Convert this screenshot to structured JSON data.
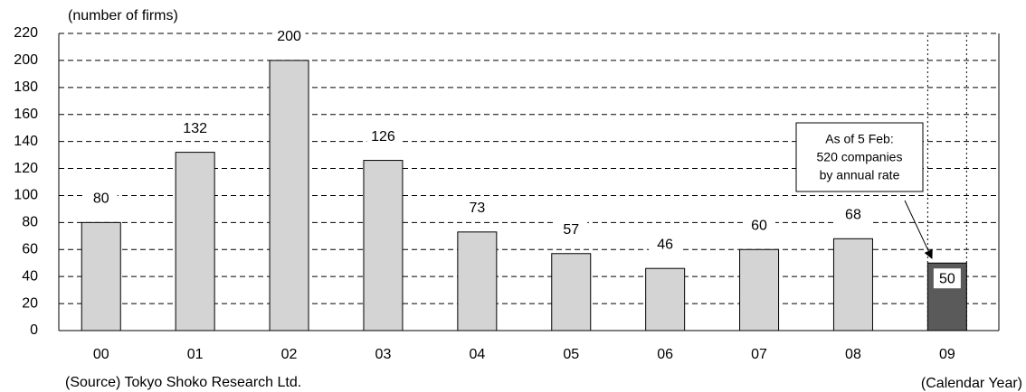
{
  "chart_data": {
    "type": "bar",
    "y_label": "(number of firms)",
    "x_label": "(Calendar Year)",
    "source": "(Source) Tokyo Shoko Research Ltd.",
    "categories": [
      "00",
      "01",
      "02",
      "03",
      "04",
      "05",
      "06",
      "07",
      "08",
      "09"
    ],
    "values": [
      80,
      132,
      200,
      126,
      73,
      57,
      46,
      60,
      68,
      50
    ],
    "colors": [
      "#d4d4d4",
      "#d4d4d4",
      "#d4d4d4",
      "#d4d4d4",
      "#d4d4d4",
      "#d4d4d4",
      "#d4d4d4",
      "#d4d4d4",
      "#d4d4d4",
      "#5a5a5a"
    ],
    "ylim": [
      0,
      220
    ],
    "yticks": [
      0,
      20,
      40,
      60,
      80,
      100,
      120,
      140,
      160,
      180,
      200,
      220
    ],
    "grid": true,
    "annotation": [
      "As of 5 Feb:",
      "520 companies",
      "by annual rate"
    ]
  }
}
